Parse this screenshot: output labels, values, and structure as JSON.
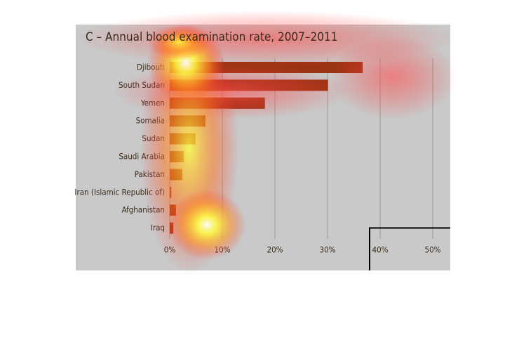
{
  "chart_data": {
    "type": "bar",
    "orientation": "horizontal",
    "title": "C – Annual blood examination rate, 2007–2011",
    "categories": [
      "Djibouti",
      "South Sudan",
      "Yemen",
      "Somalia",
      "Sudan",
      "Saudi Arabia",
      "Pakistan",
      "Iran (Islamic Republic of)",
      "Afghanistan",
      "Iraq"
    ],
    "values": [
      36.7,
      30.1,
      18.1,
      6.8,
      4.9,
      2.7,
      2.4,
      0.3,
      1.2,
      0.7
    ],
    "color": "#9a3414",
    "xlim": [
      0,
      50
    ],
    "xticks": [
      {
        "value": 0,
        "label": "0%"
      },
      {
        "value": 10,
        "label": "10%"
      },
      {
        "value": 20,
        "label": "20%"
      },
      {
        "value": 30,
        "label": "30%"
      },
      {
        "value": 40,
        "label": "40%"
      },
      {
        "value": 50,
        "label": "50%"
      }
    ],
    "grid": true
  }
}
